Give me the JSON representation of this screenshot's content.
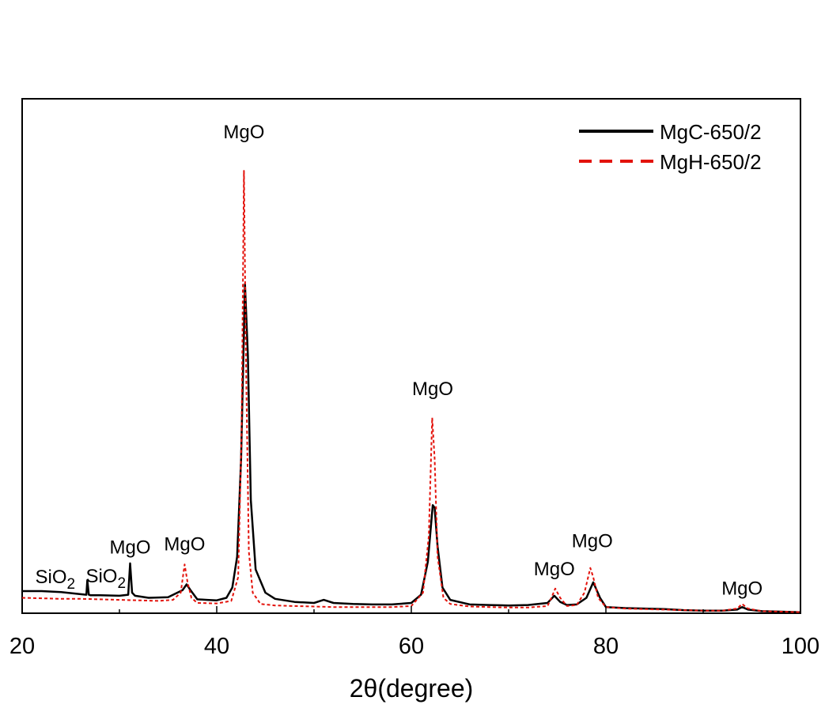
{
  "chart_data": {
    "type": "line",
    "xlabel": "2θ(degree)",
    "ylabel": "",
    "xlim": [
      20,
      100
    ],
    "xticks": [
      20,
      40,
      60,
      80,
      100
    ],
    "yticks_visible": false,
    "grid": false,
    "legend_placement": "top-right",
    "series": [
      {
        "name": "MgC-650/2",
        "color": "#000000",
        "line_style": "solid",
        "x": [
          20,
          21,
          22,
          24,
          26,
          26.6,
          26.7,
          26.85,
          27,
          28,
          30,
          30.9,
          31.1,
          31.3,
          31.6,
          33,
          35,
          36.5,
          36.9,
          37.3,
          38,
          39,
          40,
          41,
          41.6,
          42.1,
          42.5,
          42.9,
          43.2,
          43.5,
          44,
          45,
          46,
          48,
          50,
          51,
          52,
          54,
          56,
          58,
          60,
          61,
          61.7,
          62.2,
          62.4,
          62.7,
          63.2,
          64,
          66,
          68,
          70,
          72,
          74,
          74.7,
          75.3,
          76,
          77,
          78,
          78.7,
          79.4,
          80,
          82,
          84,
          86,
          88,
          90,
          92,
          93.5,
          94,
          94.6,
          96,
          98,
          100
        ],
        "y": [
          0.043,
          0.043,
          0.043,
          0.041,
          0.037,
          0.036,
          0.064,
          0.036,
          0.035,
          0.035,
          0.034,
          0.036,
          0.097,
          0.04,
          0.034,
          0.03,
          0.031,
          0.045,
          0.056,
          0.045,
          0.027,
          0.026,
          0.025,
          0.03,
          0.05,
          0.11,
          0.3,
          0.64,
          0.5,
          0.22,
          0.085,
          0.04,
          0.028,
          0.022,
          0.02,
          0.026,
          0.02,
          0.018,
          0.017,
          0.017,
          0.02,
          0.036,
          0.1,
          0.21,
          0.205,
          0.13,
          0.05,
          0.026,
          0.017,
          0.016,
          0.015,
          0.016,
          0.02,
          0.034,
          0.022,
          0.016,
          0.017,
          0.03,
          0.06,
          0.03,
          0.012,
          0.01,
          0.009,
          0.008,
          0.006,
          0.005,
          0.005,
          0.007,
          0.012,
          0.007,
          0.004,
          0.003,
          0.002
        ]
      },
      {
        "name": "MgH-650/2",
        "color": "#e3120b",
        "line_style": "dashed",
        "x": [
          20,
          22,
          24,
          26,
          28,
          30,
          32,
          34,
          35.5,
          36.3,
          36.7,
          37.0,
          37.4,
          38,
          40,
          41.5,
          42.2,
          42.55,
          42.8,
          43.0,
          43.3,
          43.7,
          44.5,
          46,
          48,
          50,
          52,
          54,
          56,
          58,
          60,
          61.2,
          61.8,
          62.15,
          62.4,
          62.7,
          63.3,
          64,
          66,
          68,
          70,
          72,
          74,
          74.4,
          74.8,
          75.3,
          76,
          77,
          77.8,
          78.4,
          78.7,
          79.2,
          80,
          82,
          84,
          86,
          88,
          90,
          92,
          93.5,
          94,
          94.6,
          96,
          98,
          100
        ],
        "y": [
          0.03,
          0.029,
          0.028,
          0.028,
          0.027,
          0.026,
          0.025,
          0.024,
          0.026,
          0.04,
          0.095,
          0.06,
          0.03,
          0.02,
          0.019,
          0.024,
          0.07,
          0.35,
          0.86,
          0.5,
          0.12,
          0.04,
          0.018,
          0.015,
          0.014,
          0.013,
          0.012,
          0.012,
          0.012,
          0.012,
          0.014,
          0.04,
          0.15,
          0.38,
          0.3,
          0.11,
          0.03,
          0.018,
          0.013,
          0.012,
          0.011,
          0.011,
          0.014,
          0.03,
          0.048,
          0.03,
          0.014,
          0.016,
          0.04,
          0.088,
          0.07,
          0.03,
          0.012,
          0.009,
          0.008,
          0.007,
          0.006,
          0.005,
          0.005,
          0.009,
          0.018,
          0.009,
          0.004,
          0.003,
          0.002
        ]
      }
    ],
    "annotations": [
      {
        "x": 23.4,
        "y": 0.058,
        "text": "SiO",
        "sub": "2"
      },
      {
        "x": 28.6,
        "y": 0.06,
        "text": "SiO",
        "sub": "2"
      },
      {
        "x": 31.1,
        "y": 0.116,
        "text": "MgO",
        "sub": ""
      },
      {
        "x": 36.7,
        "y": 0.122,
        "text": "MgO",
        "sub": ""
      },
      {
        "x": 42.8,
        "y": 0.923,
        "text": "MgO",
        "sub": ""
      },
      {
        "x": 62.2,
        "y": 0.424,
        "text": "MgO",
        "sub": ""
      },
      {
        "x": 74.7,
        "y": 0.074,
        "text": "MgO",
        "sub": ""
      },
      {
        "x": 78.6,
        "y": 0.128,
        "text": "MgO",
        "sub": ""
      },
      {
        "x": 94.0,
        "y": 0.036,
        "text": "MgO",
        "sub": ""
      }
    ]
  }
}
